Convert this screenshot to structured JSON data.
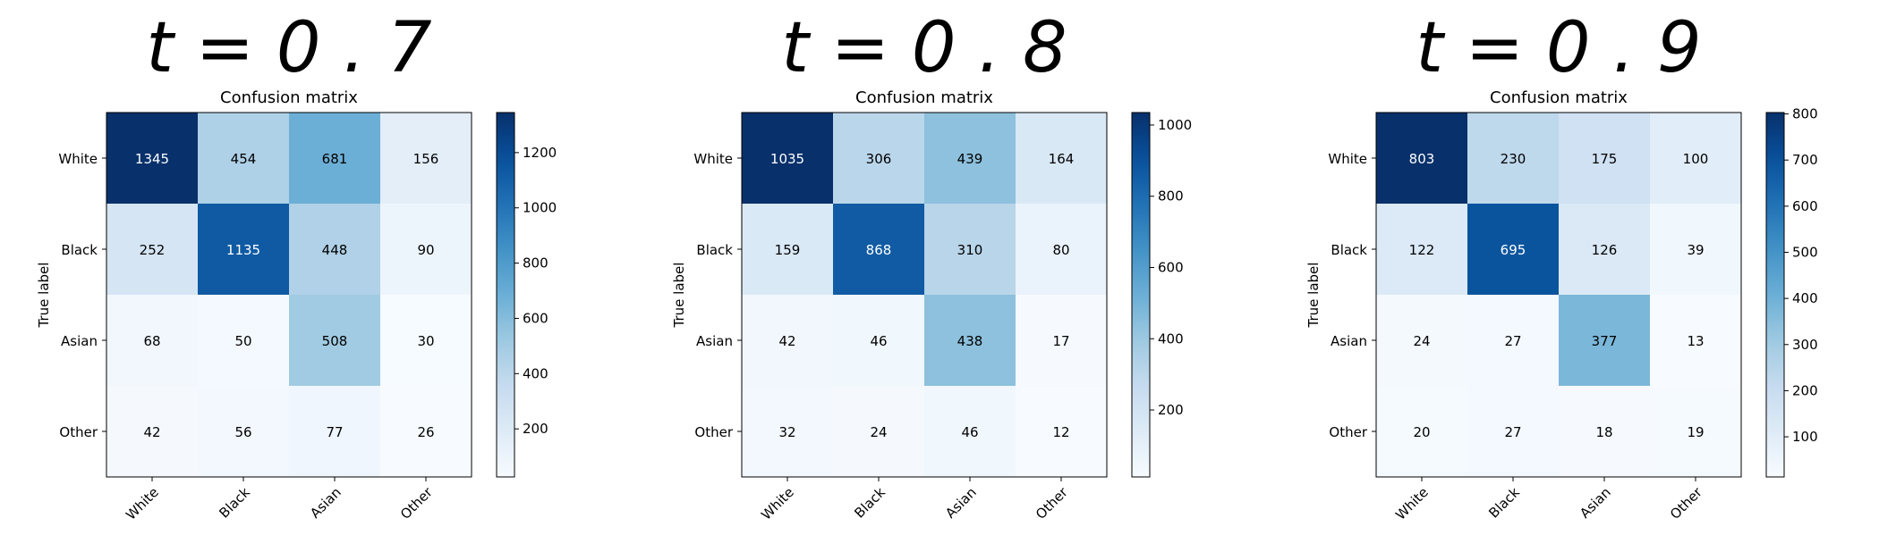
{
  "chart_data": [
    {
      "type": "heatmap",
      "heading": "t = 0 . 7",
      "title": "Confusion matrix",
      "ylabel": "True label",
      "row_labels": [
        "White",
        "Black",
        "Asian",
        "Other"
      ],
      "col_labels": [
        "White",
        "Black",
        "Asian",
        "Other"
      ],
      "values": [
        [
          1345,
          454,
          681,
          156
        ],
        [
          252,
          1135,
          448,
          90
        ],
        [
          68,
          50,
          508,
          30
        ],
        [
          42,
          56,
          77,
          26
        ]
      ],
      "colorbar": {
        "ticks": [
          200,
          400,
          600,
          800,
          1000,
          1200
        ],
        "range": [
          26,
          1345
        ]
      },
      "colormap": "Blues"
    },
    {
      "type": "heatmap",
      "heading": "t = 0 . 8",
      "title": "Confusion matrix",
      "ylabel": "True label",
      "row_labels": [
        "White",
        "Black",
        "Asian",
        "Other"
      ],
      "col_labels": [
        "White",
        "Black",
        "Asian",
        "Other"
      ],
      "values": [
        [
          1035,
          306,
          439,
          164
        ],
        [
          159,
          868,
          310,
          80
        ],
        [
          42,
          46,
          438,
          17
        ],
        [
          32,
          24,
          46,
          12
        ]
      ],
      "colorbar": {
        "ticks": [
          200,
          400,
          600,
          800,
          1000
        ],
        "range": [
          12,
          1035
        ]
      },
      "colormap": "Blues"
    },
    {
      "type": "heatmap",
      "heading": "t = 0 . 9",
      "title": "Confusion matrix",
      "ylabel": "True label",
      "row_labels": [
        "White",
        "Black",
        "Asian",
        "Other"
      ],
      "col_labels": [
        "White",
        "Black",
        "Asian",
        "Other"
      ],
      "values": [
        [
          803,
          230,
          175,
          100
        ],
        [
          122,
          695,
          126,
          39
        ],
        [
          24,
          27,
          377,
          13
        ],
        [
          20,
          27,
          18,
          19
        ]
      ],
      "colorbar": {
        "ticks": [
          100,
          200,
          300,
          400,
          500,
          600,
          700,
          800
        ],
        "range": [
          13,
          803
        ]
      },
      "colormap": "Blues"
    }
  ]
}
